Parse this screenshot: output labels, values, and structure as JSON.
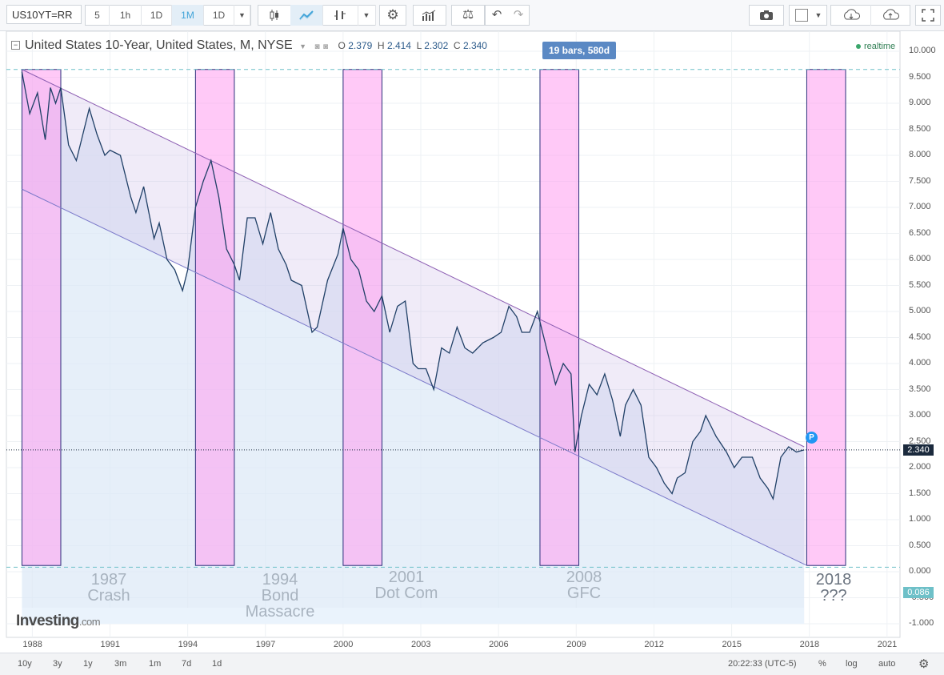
{
  "toolbar": {
    "symbol": "US10YT=RR",
    "intervals": [
      "5",
      "1h",
      "1D",
      "1M",
      "1D"
    ],
    "active_interval_index": 3,
    "icons": [
      "candles-icon",
      "line-chart-icon",
      "indicator-icon",
      "settings-icon",
      "bars-icon",
      "balance-icon",
      "undo-icon",
      "redo-icon",
      "camera-icon",
      "color-square-icon",
      "cloud-download-icon",
      "cloud-upload-icon",
      "fullscreen-icon"
    ]
  },
  "legend": {
    "title": "United States 10-Year, United States, M, NYSE",
    "o_label": "O",
    "o_value": "2.379",
    "h_label": "H",
    "h_value": "2.414",
    "l_label": "L",
    "l_value": "2.302",
    "c_label": "C",
    "c_value": "2.340"
  },
  "realtime": "realtime",
  "bars_tooltip": "19 bars, 580d",
  "y_axis": {
    "ticks": [
      "10.000",
      "9.500",
      "9.000",
      "8.500",
      "8.000",
      "7.500",
      "7.000",
      "6.500",
      "6.000",
      "5.500",
      "5.000",
      "4.500",
      "4.000",
      "3.500",
      "3.000",
      "2.500",
      "2.000",
      "1.500",
      "1.000",
      "0.500",
      "0.000",
      "-0.500",
      "-1.000"
    ]
  },
  "x_axis": {
    "ticks": [
      "1988",
      "1991",
      "1994",
      "1997",
      "2000",
      "2003",
      "2006",
      "2009",
      "2012",
      "2015",
      "2018",
      "2021"
    ]
  },
  "price_tag": "2.340",
  "low_tag": "0.086",
  "p_marker": "P",
  "events": [
    {
      "year": "1987",
      "name": "Crash"
    },
    {
      "year": "1994",
      "name": "Bond",
      "name2": "Massacre"
    },
    {
      "year": "2001",
      "name": "Dot Com"
    },
    {
      "year": "2008",
      "name": "GFC"
    },
    {
      "year": "2018",
      "name": "???"
    }
  ],
  "logo": {
    "main": "Investing",
    "suffix": ".com"
  },
  "bottom": {
    "ranges": [
      "10y",
      "3y",
      "1y",
      "3m",
      "1m",
      "7d",
      "1d"
    ],
    "time": "20:22:33 (UTC-5)",
    "pct": "%",
    "log": "log",
    "auto": "auto"
  },
  "colors": {
    "line": "#1f3f66",
    "event_band": "#ff9cf0",
    "channel_upper": "#8d5fb3",
    "channel_lower": "#7a78c9",
    "fill": "#dbe8f6",
    "accent": "#3fa3d8"
  },
  "chart_data": {
    "type": "line",
    "series_name": "United States 10-Year",
    "x": [
      1987.6,
      1987.9,
      1988.2,
      1988.5,
      1988.7,
      1988.9,
      1989.1,
      1989.4,
      1989.7,
      1990.0,
      1990.2,
      1990.5,
      1990.8,
      1991.0,
      1991.4,
      1991.8,
      1992.0,
      1992.3,
      1992.7,
      1992.9,
      1993.2,
      1993.5,
      1993.8,
      1994.0,
      1994.3,
      1994.6,
      1994.9,
      1995.2,
      1995.5,
      1995.8,
      1996.0,
      1996.3,
      1996.6,
      1996.9,
      1997.2,
      1997.5,
      1997.8,
      1998.0,
      1998.4,
      1998.8,
      1999.0,
      1999.4,
      1999.8,
      2000.0,
      2000.3,
      2000.6,
      2000.9,
      2001.2,
      2001.5,
      2001.8,
      2002.1,
      2002.4,
      2002.7,
      2002.9,
      2003.2,
      2003.5,
      2003.8,
      2004.1,
      2004.4,
      2004.7,
      2005.0,
      2005.4,
      2005.8,
      2006.1,
      2006.4,
      2006.7,
      2006.9,
      2007.2,
      2007.5,
      2007.7,
      2007.9,
      2008.2,
      2008.5,
      2008.8,
      2008.95,
      2009.2,
      2009.5,
      2009.8,
      2010.1,
      2010.4,
      2010.7,
      2010.9,
      2011.2,
      2011.5,
      2011.8,
      2012.1,
      2012.4,
      2012.7,
      2012.9,
      2013.2,
      2013.5,
      2013.8,
      2014.0,
      2014.4,
      2014.8,
      2015.1,
      2015.4,
      2015.8,
      2016.1,
      2016.4,
      2016.6,
      2016.9,
      2017.2,
      2017.5,
      2017.8
    ],
    "y": [
      9.6,
      8.8,
      9.2,
      8.3,
      9.3,
      9.0,
      9.3,
      8.2,
      7.9,
      8.5,
      8.9,
      8.4,
      8.0,
      8.1,
      8.0,
      7.2,
      6.9,
      7.4,
      6.4,
      6.7,
      6.0,
      5.8,
      5.4,
      5.8,
      7.0,
      7.5,
      7.9,
      7.2,
      6.2,
      5.9,
      5.6,
      6.8,
      6.8,
      6.3,
      6.9,
      6.2,
      5.9,
      5.6,
      5.5,
      4.6,
      4.7,
      5.6,
      6.1,
      6.6,
      6.0,
      5.8,
      5.2,
      5.0,
      5.3,
      4.6,
      5.1,
      5.2,
      4.0,
      3.9,
      3.9,
      3.5,
      4.3,
      4.2,
      4.7,
      4.3,
      4.2,
      4.4,
      4.5,
      4.6,
      5.1,
      4.9,
      4.6,
      4.6,
      5.0,
      4.6,
      4.2,
      3.6,
      4.0,
      3.8,
      2.3,
      3.0,
      3.6,
      3.4,
      3.8,
      3.3,
      2.6,
      3.2,
      3.5,
      3.2,
      2.2,
      2.0,
      1.7,
      1.5,
      1.8,
      1.9,
      2.5,
      2.7,
      3.0,
      2.6,
      2.3,
      2.0,
      2.2,
      2.2,
      1.8,
      1.6,
      1.4,
      2.2,
      2.4,
      2.3,
      2.34
    ],
    "xlim": [
      1987.0,
      2021.5
    ],
    "ylim": [
      -1.0,
      10.0
    ],
    "channel": {
      "upper": {
        "x": [
          1987.6,
          2017.8
        ],
        "y": [
          9.65,
          2.4
        ]
      },
      "lower": {
        "x": [
          1987.6,
          2017.9
        ],
        "y": [
          7.35,
          0.12
        ]
      }
    },
    "highlight_bands": [
      [
        1987.6,
        1989.1
      ],
      [
        1994.3,
        1995.8
      ],
      [
        2000.0,
        2001.5
      ],
      [
        2007.6,
        2009.1
      ],
      [
        2017.9,
        2019.4
      ]
    ],
    "last_price": 2.34,
    "dashed_levels": [
      9.65,
      0.086
    ]
  }
}
